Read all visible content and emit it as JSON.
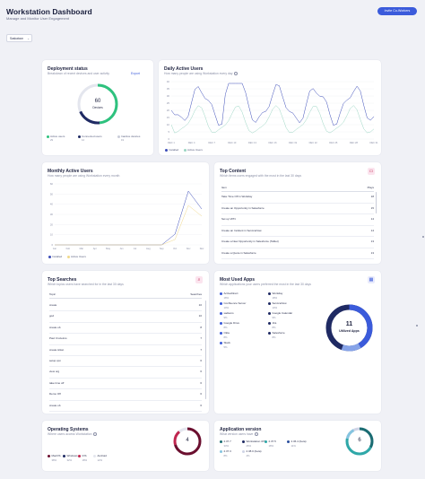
{
  "header": {
    "title": "Workstation Dashboard",
    "subtitle": "Manage and Monitor User Engagement",
    "invite_button": "Invite Co-Workers",
    "filter_value": "Saskatoon"
  },
  "deployment": {
    "title": "Deployment status",
    "subtitle": "Breakdown of recent devices and user activity",
    "export_label": "Export",
    "center_value": "60",
    "center_label": "Devices",
    "legend": [
      {
        "label": "Active users",
        "value": "29",
        "color": "#2ec27e"
      },
      {
        "label": "Connected users",
        "value": "12",
        "color": "#1f2a63"
      },
      {
        "label": "Inactive devices",
        "value": "19",
        "color": "#e4e6ee"
      }
    ]
  },
  "daily": {
    "title": "Daily Active Users",
    "subtitle": "How many people are using Workstation every day",
    "legend": [
      "Installed",
      "Active Users"
    ],
    "y_ticks": [
      "40",
      "35",
      "30",
      "25",
      "20",
      "15",
      "10",
      "5",
      "0"
    ],
    "x_ticks": [
      "DEC 1",
      "DEC 4",
      "DEC 7",
      "DEC 10",
      "DEC 13",
      "DEC 16",
      "DEC 19",
      "DEC 22",
      "DEC 25",
      "DEC 28",
      "DEC 31"
    ]
  },
  "monthly": {
    "title": "Monthly Active Users",
    "subtitle": "How many people are using Workstation every month",
    "legend": [
      "Installed",
      "Active Users"
    ],
    "y_ticks": [
      "60",
      "50",
      "40",
      "30",
      "20",
      "10",
      "0"
    ],
    "x_ticks": [
      "Jan",
      "Feb",
      "Mar",
      "Apr",
      "May",
      "Jun",
      "Jul",
      "Aug",
      "Sep",
      "Oct",
      "Nov",
      "Dec"
    ]
  },
  "top_content": {
    "title": "Top Content",
    "subtitle": "Which items users engaged with the most in the last 30 days",
    "col_item": "Item",
    "col_views": "Plays",
    "rows": [
      {
        "item": "Take Time Off in Workday",
        "value": "18"
      },
      {
        "item": "Create an Opportunity in Salesforce",
        "value": "15"
      },
      {
        "item": "Set up VPN",
        "value": "14"
      },
      {
        "item": "Create an Incident in ServiceNow",
        "value": "14"
      },
      {
        "item": "Create a New Opportunity in Salesforce (Tablet)",
        "value": "13"
      },
      {
        "item": "Create a Quote in Salesforce",
        "value": "13"
      }
    ]
  },
  "top_searches": {
    "title": "Top Searches",
    "subtitle": "Which topics users have searched for in the last 30 days",
    "col_item": "Topic",
    "col_value": "Searches",
    "rows": [
      {
        "item": "create",
        "value": "10"
      },
      {
        "item": "god",
        "value": "10"
      },
      {
        "item": "create ob",
        "value": "8"
      },
      {
        "item": "Paul Cruzeiros",
        "value": "7"
      },
      {
        "item": "create ticket",
        "value": "7"
      },
      {
        "item": "setup vpn",
        "value": "6"
      },
      {
        "item": "view org",
        "value": "6"
      },
      {
        "item": "take time off",
        "value": "6"
      },
      {
        "item": "Demo Off",
        "value": "6"
      },
      {
        "item": "create ob",
        "value": "6"
      }
    ]
  },
  "most_used": {
    "title": "Most Used Apps",
    "subtitle": "Which applications your users preferred the most in the last 30 days",
    "center_value": "11",
    "center_label": "Utilized Apps",
    "apps": [
      {
        "name": "ActiveDirect",
        "pct": "18%"
      },
      {
        "name": "Workday",
        "pct": "18%"
      },
      {
        "name": "Confluence Server",
        "pct": "10%"
      },
      {
        "name": "ServiceNow",
        "pct": "10%"
      },
      {
        "name": "sadiems",
        "pct": "9%"
      },
      {
        "name": "Google Calendar",
        "pct": "9%"
      },
      {
        "name": "Google Drive",
        "pct": "8%"
      },
      {
        "name": "Jira",
        "pct": "8%"
      },
      {
        "name": "Okta",
        "pct": "8%"
      },
      {
        "name": "Salesforce",
        "pct": "8%"
      },
      {
        "name": "Slack",
        "pct": "5%"
      }
    ]
  },
  "os": {
    "title": "Operating Systems",
    "subtitle": "Where users access Workstation",
    "center_value": "4",
    "legend": [
      {
        "label": "MacOS",
        "pct": "38%",
        "color": "#6b0f2f"
      },
      {
        "label": "Windows",
        "pct": "32%",
        "color": "#1f2a63"
      },
      {
        "label": "iOS",
        "pct": "18%",
        "color": "#c0264f"
      },
      {
        "label": "Android",
        "pct": "12%",
        "color": "#e4e6ee"
      }
    ]
  },
  "app_version": {
    "title": "Application version",
    "subtitle": "What version users have",
    "center_value": "6",
    "legend": [
      {
        "label": "2.37.7",
        "pct": "33%",
        "color": "#1a6c72"
      },
      {
        "label": "Workstation iOS",
        "pct": "26%",
        "color": "#1f2a63"
      },
      {
        "label": "2.37.5",
        "pct": "18%",
        "color": "#2fa8a8"
      },
      {
        "label": "2.36.4 (beta)",
        "pct": "11%",
        "color": "#2b4f9e"
      },
      {
        "label": "2.37.3",
        "pct": "8%",
        "color": "#86c5e0"
      },
      {
        "label": "2.38.0 (beta)",
        "pct": "4%",
        "color": "#cfd4e6"
      }
    ]
  },
  "colors": {
    "accent": "#3b5bdb",
    "installed": "#3b4cb8",
    "active": "#9bd6c3"
  }
}
